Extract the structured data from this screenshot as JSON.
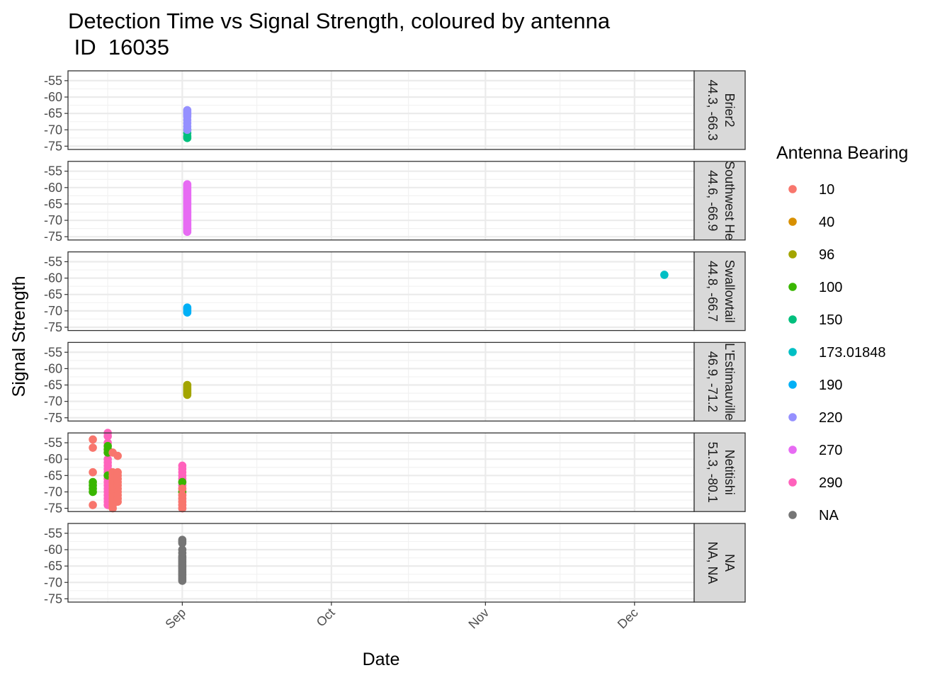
{
  "chart_data": {
    "type": "scatter",
    "title_line1": "Detection Time vs Signal Strength, coloured by antenna",
    "title_line2": " ID  16035",
    "xlabel": "Date",
    "ylabel": "Signal Strength",
    "x_ticks": [
      "Sep",
      "Oct",
      "Nov",
      "Dec"
    ],
    "x_tick_dates": [
      "2016-09-01",
      "2016-10-01",
      "2016-11-01",
      "2016-12-01"
    ],
    "xlim": [
      "2016-08-09",
      "2016-12-13"
    ],
    "y_ticks": [
      -55,
      -60,
      -65,
      -70,
      -75
    ],
    "ylim": [
      -76,
      -52
    ],
    "grid": true,
    "legend_position": "right",
    "legend": {
      "title": "Antenna Bearing",
      "entries": [
        {
          "label": "10",
          "color": "#F8766D"
        },
        {
          "label": "40",
          "color": "#D89000"
        },
        {
          "label": "96",
          "color": "#A3A500"
        },
        {
          "label": "100",
          "color": "#39B600"
        },
        {
          "label": "150",
          "color": "#00BF7D"
        },
        {
          "label": "173.01848",
          "color": "#00BFC4"
        },
        {
          "label": "190",
          "color": "#00B0F6"
        },
        {
          "label": "220",
          "color": "#9590FF"
        },
        {
          "label": "270",
          "color": "#E76BF3"
        },
        {
          "label": "290",
          "color": "#FF62BC"
        },
        {
          "label": "NA",
          "color": "#757575"
        }
      ]
    },
    "facets": [
      {
        "strip": [
          "Brier2",
          "44.3, -66.3"
        ],
        "groups": [
          {
            "date": "2016-09-02",
            "bearing": "150",
            "values": [
              -70,
              -71,
              -72,
              -72.5
            ]
          },
          {
            "date": "2016-09-02",
            "bearing": "220",
            "values": [
              -64,
              -64.5,
              -65,
              -65.5,
              -66,
              -67,
              -68,
              -69,
              -70
            ]
          }
        ]
      },
      {
        "strip": [
          "Southwest He",
          "44.6, -66.9"
        ],
        "groups": [
          {
            "date": "2016-09-02",
            "bearing": "270",
            "values": [
              -59,
              -59.5,
              -60,
              -60.5,
              -61,
              -61.5,
              -62,
              -62.5,
              -63,
              -63.5,
              -64,
              -64.5,
              -65,
              -65.5,
              -66,
              -66.5,
              -67,
              -67.5,
              -68,
              -68.5,
              -69,
              -69.5,
              -70,
              -70.5,
              -71,
              -71.5,
              -72,
              -72.5,
              -73,
              -73.5
            ]
          }
        ]
      },
      {
        "strip": [
          "Swallowtail",
          "44.8, -66.7"
        ],
        "groups": [
          {
            "date": "2016-09-02",
            "bearing": "190",
            "values": [
              -69,
              -69.5,
              -70,
              -70.5
            ]
          },
          {
            "date": "2016-12-07",
            "bearing": "173.01848",
            "values": [
              -59
            ]
          }
        ]
      },
      {
        "strip": [
          "L'Estimauville",
          "46.9, -71.2"
        ],
        "groups": [
          {
            "date": "2016-09-02",
            "bearing": "96",
            "values": [
              -65,
              -65.5,
              -66,
              -66.5,
              -67,
              -67.5,
              -68
            ]
          }
        ]
      },
      {
        "strip": [
          "Netitishi",
          "51.3, -80.1"
        ],
        "groups": [
          {
            "date": "2016-08-14",
            "bearing": "10",
            "values": [
              -54,
              -56.5,
              -64,
              -74
            ]
          },
          {
            "date": "2016-08-14",
            "bearing": "100",
            "values": [
              -67,
              -68,
              -69,
              -70
            ]
          },
          {
            "date": "2016-08-17",
            "bearing": "290",
            "values": [
              -52,
              -53,
              -55,
              -57,
              -58,
              -60,
              -61,
              -62,
              -63,
              -64,
              -65,
              -66,
              -67,
              -68,
              -69,
              -70,
              -71,
              -72,
              -73,
              -74
            ]
          },
          {
            "date": "2016-08-17",
            "bearing": "100",
            "values": [
              -56,
              -57,
              -58,
              -65
            ]
          },
          {
            "date": "2016-08-18",
            "bearing": "10",
            "values": [
              -58,
              -64,
              -65,
              -66,
              -67,
              -68,
              -69,
              -70,
              -71,
              -72,
              -73,
              -74,
              -75
            ]
          },
          {
            "date": "2016-08-19",
            "bearing": "10",
            "values": [
              -59,
              -64,
              -65,
              -66,
              -67,
              -68,
              -69,
              -70,
              -71,
              -72,
              -73
            ]
          },
          {
            "date": "2016-09-01",
            "bearing": "290",
            "values": [
              -62,
              -63,
              -64,
              -65,
              -66,
              -67,
              -68,
              -69,
              -70,
              -71,
              -72,
              -73,
              -74,
              -75
            ]
          },
          {
            "date": "2016-09-01",
            "bearing": "100",
            "values": [
              -67,
              -70
            ]
          },
          {
            "date": "2016-09-01",
            "bearing": "10",
            "values": [
              -69,
              -71,
              -72,
              -73,
              -74,
              -75
            ]
          }
        ]
      },
      {
        "strip": [
          "NA",
          "NA, NA"
        ],
        "groups": [
          {
            "date": "2016-09-01",
            "bearing": "NA",
            "values": [
              -57,
              -57.5,
              -58,
              -60,
              -61,
              -62,
              -62.5,
              -63,
              -63.5,
              -64,
              -64.5,
              -65,
              -65.5,
              -66,
              -66.5,
              -67,
              -67.5,
              -68,
              -68.5,
              -69,
              -69.5
            ]
          }
        ]
      }
    ]
  }
}
